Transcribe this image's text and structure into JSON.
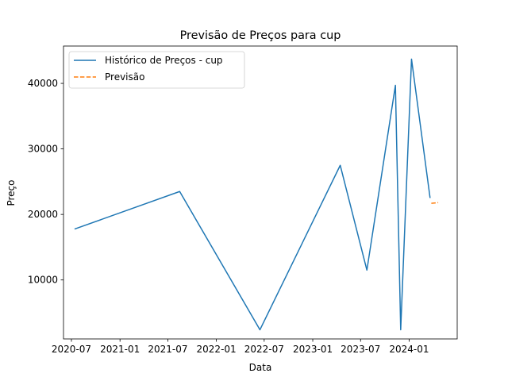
{
  "chart_data": {
    "type": "line",
    "title": "Previsão de Preços para cup",
    "xlabel": "Data",
    "ylabel": "Preço",
    "x_ticks": [
      "2020-07",
      "2021-01",
      "2021-07",
      "2022-01",
      "2022-07",
      "2023-01",
      "2023-07",
      "2024-01"
    ],
    "y_ticks": [
      10000,
      20000,
      30000,
      40000
    ],
    "y_tick_labels": [
      "10000",
      "20000",
      "30000",
      "40000"
    ],
    "xlim": [
      "2020-06-01",
      "2024-07-01"
    ],
    "ylim": [
      1000,
      45700
    ],
    "legend_position": "upper-left",
    "grid": false,
    "series": [
      {
        "name": "Histórico de Preços - cup",
        "color": "#1f77b4",
        "style": "solid",
        "points": [
          {
            "x": "2020-07-15",
            "y": 17800
          },
          {
            "x": "2021-08-15",
            "y": 23500
          },
          {
            "x": "2022-06-15",
            "y": 2400
          },
          {
            "x": "2023-04-15",
            "y": 27500
          },
          {
            "x": "2023-07-25",
            "y": 11500
          },
          {
            "x": "2023-11-10",
            "y": 39700
          },
          {
            "x": "2023-11-30",
            "y": 2400
          },
          {
            "x": "2024-01-10",
            "y": 43700
          },
          {
            "x": "2024-03-20",
            "y": 22600
          }
        ]
      },
      {
        "name": "Previsão",
        "color": "#ff7f0e",
        "style": "dashed",
        "points": [
          {
            "x": "2024-03-25",
            "y": 21700
          },
          {
            "x": "2024-04-20",
            "y": 21800
          }
        ]
      }
    ]
  }
}
